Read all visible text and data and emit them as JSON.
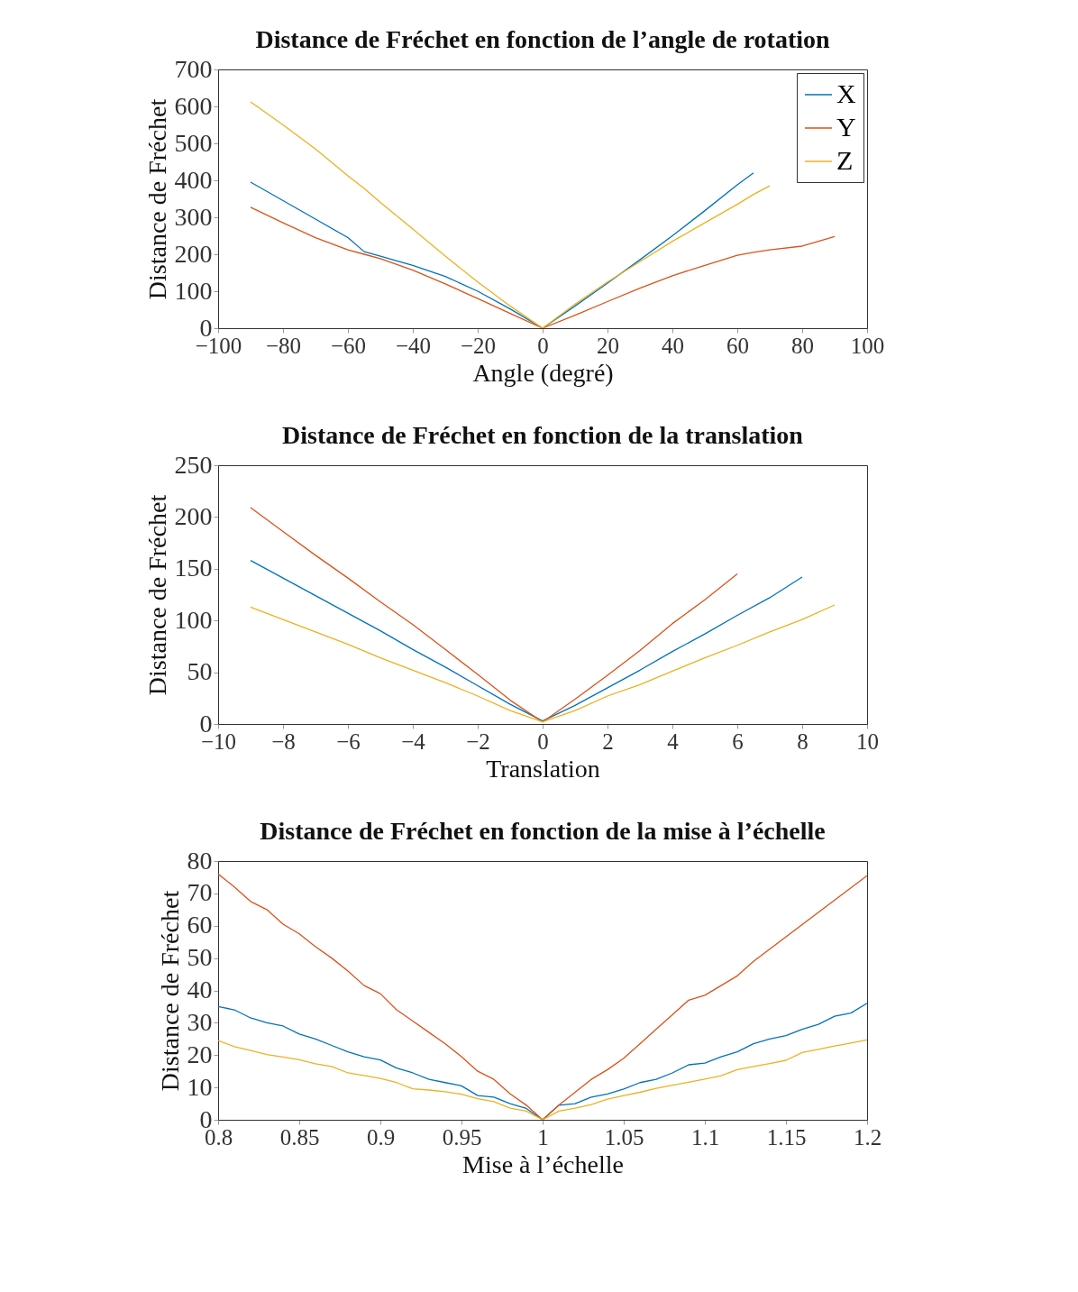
{
  "chart_data": [
    {
      "type": "line",
      "title": "Distance de Fréchet en fonction de l’angle de rotation",
      "xlabel": "Angle (degré)",
      "ylabel": "Distance de Fréchet",
      "x": [
        -90,
        -80,
        -70,
        -60,
        -55,
        -50,
        -40,
        -30,
        -20,
        -10,
        0,
        10,
        20,
        30,
        40,
        50,
        60,
        65,
        70,
        80,
        90
      ],
      "series": [
        {
          "name": "X",
          "color": "#0072bd",
          "values": [
            395,
            345,
            295,
            245,
            207,
            195,
            170,
            140,
            100,
            52,
            0,
            60,
            122,
            185,
            250,
            318,
            388,
            420,
            null,
            null,
            null
          ]
        },
        {
          "name": "Y",
          "color": "#d95319",
          "values": [
            327,
            285,
            245,
            212,
            200,
            188,
            157,
            120,
            80,
            40,
            0,
            35,
            72,
            108,
            142,
            170,
            197,
            205,
            212,
            222,
            248
          ]
        },
        {
          "name": "Z",
          "color": "#edb120",
          "values": [
            612,
            550,
            485,
            412,
            378,
            340,
            268,
            195,
            125,
            60,
            0,
            65,
            125,
            180,
            235,
            285,
            335,
            362,
            385,
            null,
            null
          ]
        }
      ],
      "xlim": [
        -100,
        100
      ],
      "xticks": [
        -100,
        -80,
        -60,
        -40,
        -20,
        0,
        20,
        40,
        60,
        80,
        100
      ],
      "ylim": [
        0,
        700
      ],
      "yticks": [
        0,
        100,
        200,
        300,
        400,
        500,
        600,
        700
      ],
      "grid": false,
      "legend": "top right",
      "line_style": "solid"
    },
    {
      "type": "line",
      "title": "Distance de Fréchet en fonction de la translation",
      "xlabel": "Translation",
      "ylabel": "Distance de Fréchet",
      "x": [
        -9,
        -8,
        -7,
        -6,
        -5,
        -4,
        -3,
        -2,
        -1,
        0,
        1,
        2,
        3,
        4,
        5,
        6,
        7,
        8,
        9
      ],
      "series": [
        {
          "name": "X",
          "color": "#0072bd",
          "values": [
            158,
            141,
            124,
            107,
            90,
            72,
            55,
            37,
            19,
            3,
            18,
            35,
            52,
            70,
            87,
            105,
            122,
            142,
            null
          ]
        },
        {
          "name": "Y",
          "color": "#d95319",
          "values": [
            209,
            186,
            163,
            141,
            118,
            96,
            72,
            48,
            23,
            2,
            24,
            47,
            71,
            97,
            120,
            145,
            null,
            null,
            null
          ]
        },
        {
          "name": "Z",
          "color": "#edb120",
          "values": [
            113,
            101,
            89,
            77,
            64,
            52,
            40,
            27,
            13,
            2,
            13,
            27,
            38,
            51,
            64,
            76,
            89,
            101,
            115
          ]
        }
      ],
      "xlim": [
        -10,
        10
      ],
      "xticks": [
        -10,
        -8,
        -6,
        -4,
        -2,
        0,
        2,
        4,
        6,
        8,
        10
      ],
      "ylim": [
        0,
        250
      ],
      "yticks": [
        0,
        50,
        100,
        150,
        200,
        250
      ],
      "grid": false,
      "legend": "top right",
      "line_style": "solid"
    },
    {
      "type": "line",
      "title": "Distance de Fréchet en fonction de la mise à l’échelle",
      "xlabel": "Mise à l’échelle",
      "ylabel": "Distance de Fréchet",
      "x": [
        0.8,
        0.81,
        0.82,
        0.83,
        0.84,
        0.85,
        0.86,
        0.87,
        0.88,
        0.89,
        0.9,
        0.91,
        0.92,
        0.93,
        0.94,
        0.95,
        0.96,
        0.97,
        0.98,
        0.99,
        1,
        1.01,
        1.02,
        1.03,
        1.04,
        1.05,
        1.06,
        1.07,
        1.08,
        1.09,
        1.1,
        1.11,
        1.12,
        1.13,
        1.14,
        1.15,
        1.16,
        1.17,
        1.18,
        1.19,
        1.2
      ],
      "series": [
        {
          "name": "X",
          "color": "#0072bd",
          "values": [
            35,
            34,
            31.5,
            30,
            29,
            26.5,
            25,
            23,
            21,
            19.5,
            18.5,
            16,
            14.5,
            12.5,
            11.5,
            10.5,
            7.5,
            7,
            5,
            3.5,
            0,
            4.5,
            5,
            7,
            8,
            9.5,
            11.5,
            12.5,
            14.5,
            17,
            17.5,
            19.5,
            21,
            23.5,
            25,
            26,
            28,
            29.5,
            32,
            33,
            36
          ]
        },
        {
          "name": "Y",
          "color": "#d95319",
          "values": [
            76,
            72,
            67.5,
            65,
            60.5,
            57.5,
            53.5,
            50,
            46,
            41.5,
            39,
            34,
            30.5,
            27,
            23.5,
            19.5,
            15,
            12.5,
            8,
            4.5,
            0,
            4.5,
            8.5,
            12.5,
            15.5,
            19,
            23.5,
            28,
            32.5,
            37,
            38.5,
            41.5,
            44.5,
            49,
            null,
            null,
            null,
            null,
            null,
            null,
            75.5
          ]
        },
        {
          "name": "Z",
          "color": "#edb120",
          "values": [
            24.5,
            22.6,
            21.4,
            20.2,
            19.4,
            18.6,
            17.3,
            16.5,
            14.5,
            13.7,
            12.8,
            11.5,
            9.6,
            9.2,
            8.7,
            7.9,
            6.5,
            5.6,
            3.6,
            2.7,
            0,
            2.7,
            3.6,
            4.7,
            6.4,
            7.5,
            8.5,
            9.7,
            10.7,
            11.6,
            12.6,
            13.6,
            15.5,
            16.5,
            17.4,
            18.4,
            20.8,
            21.8,
            22.8,
            23.7,
            24.7
          ]
        }
      ],
      "xlim": [
        0.8,
        1.2
      ],
      "xticks": [
        0.8,
        0.85,
        0.9,
        0.95,
        1,
        1.05,
        1.1,
        1.15,
        1.2
      ],
      "ylim": [
        0,
        80
      ],
      "yticks": [
        0,
        10,
        20,
        30,
        40,
        50,
        60,
        70,
        80
      ],
      "grid": false,
      "legend": "top right",
      "line_style": "solid"
    }
  ]
}
